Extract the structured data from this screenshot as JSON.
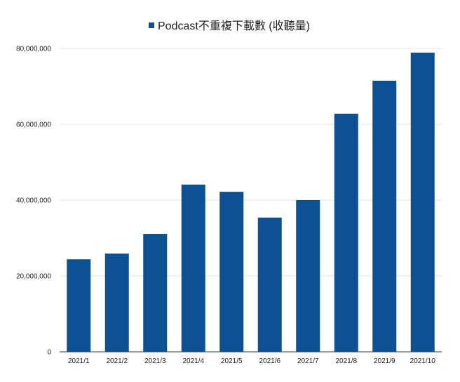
{
  "chart_data": {
    "type": "bar",
    "title": "",
    "legend": {
      "position": "top",
      "entries": [
        "Podcast不重複下載數 (收聽量)"
      ]
    },
    "categories": [
      "2021/1",
      "2021/2",
      "2021/3",
      "2021/4",
      "2021/5",
      "2021/6",
      "2021/7",
      "2021/8",
      "2021/9",
      "2021/10"
    ],
    "series": [
      {
        "name": "Podcast不重複下載數 (收聽量)",
        "color": "#0d5194",
        "values": [
          24400000,
          25900000,
          31100000,
          44100000,
          42200000,
          35400000,
          40000000,
          62800000,
          71500000,
          78900000
        ]
      }
    ],
    "xlabel": "",
    "ylabel": "",
    "ylim": [
      0,
      80000000
    ],
    "yticks": [
      0,
      20000000,
      40000000,
      60000000,
      80000000
    ],
    "ytick_labels": [
      "0",
      "20,000,000",
      "40,000,000",
      "60,000,000",
      "80,000,000"
    ],
    "grid": true
  }
}
